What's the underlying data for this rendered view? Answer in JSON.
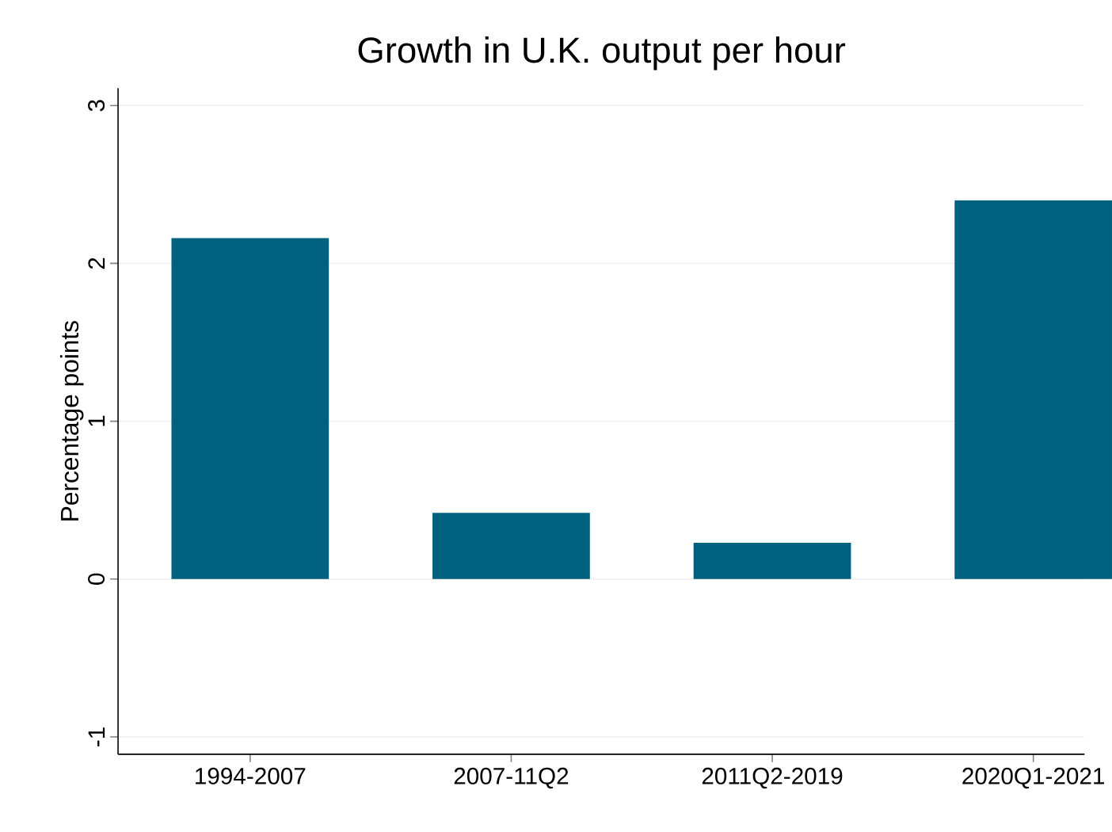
{
  "chart_data": {
    "type": "bar",
    "title": "Growth in U.K. output per hour",
    "ylabel": "Percentage points",
    "categories": [
      "1994-2007",
      "2007-11Q2",
      "2011Q2-2019",
      "2020Q1-2021"
    ],
    "values": [
      2.16,
      0.42,
      0.23,
      2.4
    ],
    "color": "#00617f",
    "ylim": [
      -1.11,
      3.11
    ],
    "yticks": [
      -1,
      0,
      1,
      2,
      3
    ],
    "grid": "y"
  }
}
